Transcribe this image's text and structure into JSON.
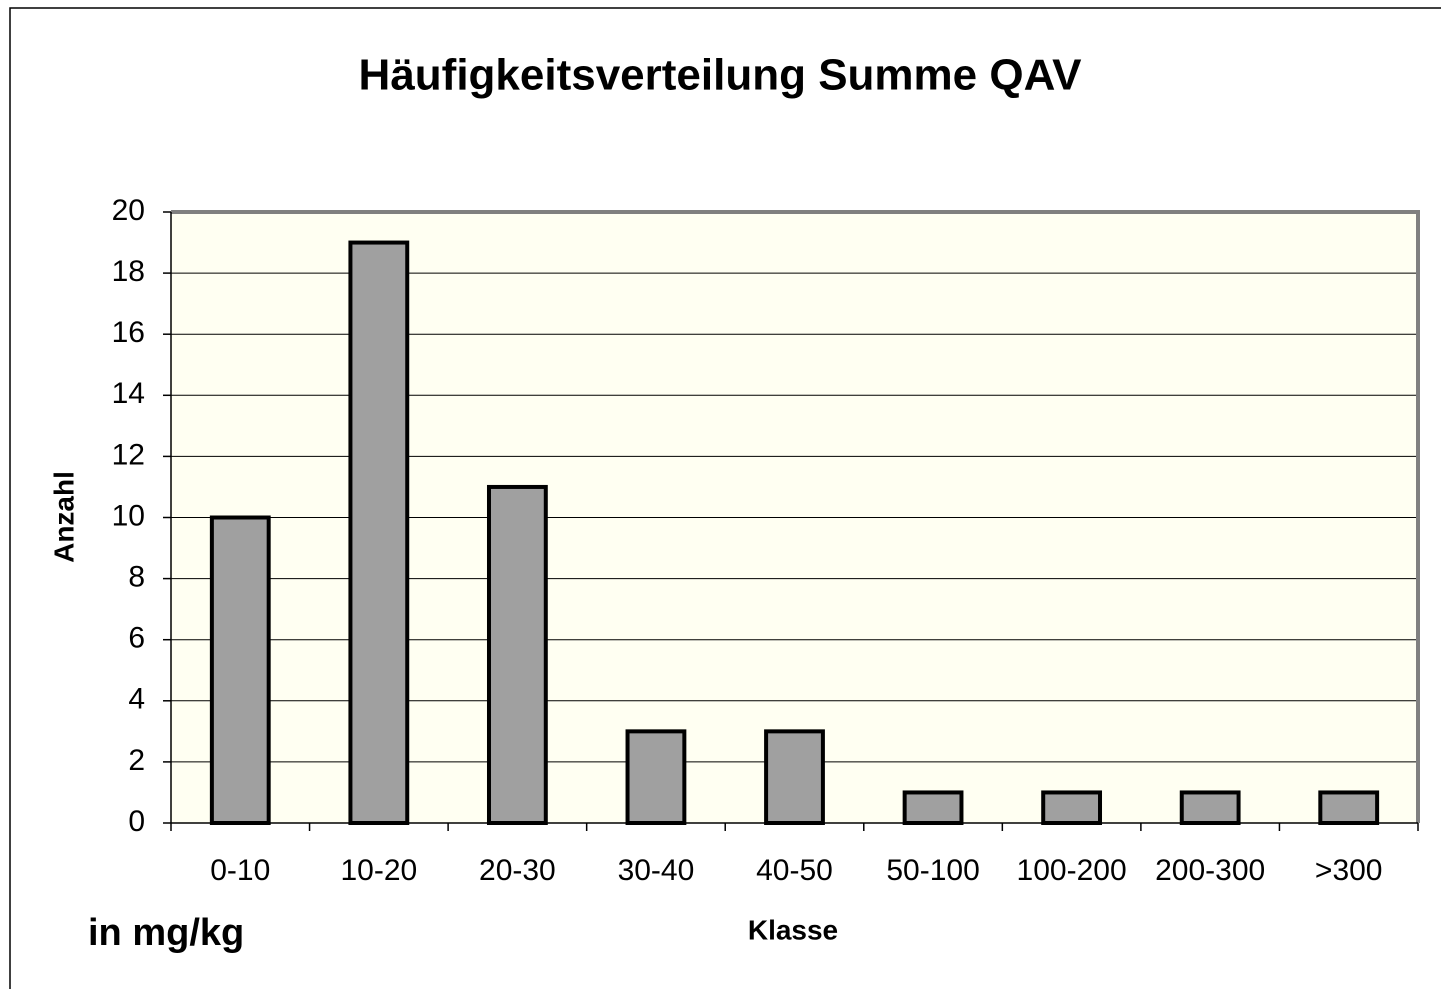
{
  "chart_data": {
    "type": "bar",
    "title": "Häufigkeitsverteilung Summe QAV",
    "x_label": "Klasse",
    "y_label": "Anzahl",
    "annotation": "in mg/kg",
    "categories": [
      "0-10",
      "10-20",
      "20-30",
      "30-40",
      "40-50",
      "50-100",
      "100-200",
      "200-300",
      ">300"
    ],
    "values": [
      10,
      19,
      11,
      3,
      3,
      1,
      1,
      1,
      1
    ],
    "color": "#a0a0a0",
    "ylim": [
      0,
      20
    ],
    "yticks": [
      0,
      2,
      4,
      6,
      8,
      10,
      12,
      14,
      16,
      18,
      20
    ],
    "grid": true
  }
}
